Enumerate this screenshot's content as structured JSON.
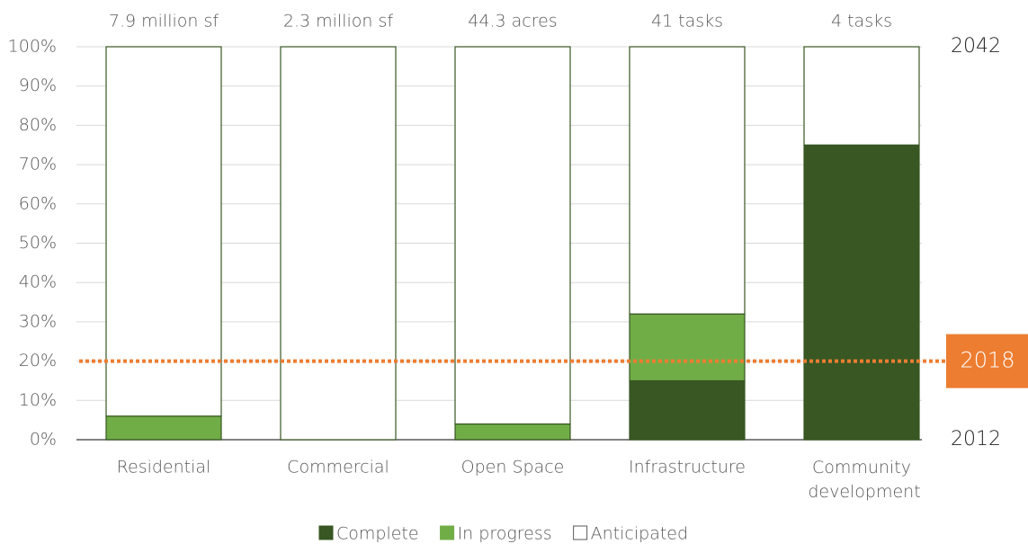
{
  "chart_data": {
    "type": "stacked_bar",
    "categories": [
      "Residential",
      "Commercial",
      "Open Space",
      "Infrastructure",
      "Community development"
    ],
    "top_labels": [
      "7.9 million sf",
      "2.3 million sf",
      "44.3 acres",
      "41 tasks",
      "4 tasks"
    ],
    "series": [
      {
        "name": "Complete",
        "color": "#385723",
        "values": [
          0,
          0,
          0,
          15,
          75
        ]
      },
      {
        "name": "In progress",
        "color": "#70ad47",
        "values": [
          6,
          0,
          4,
          17,
          0
        ]
      },
      {
        "name": "Anticipated",
        "color": "#ffffff",
        "values": [
          94,
          100,
          96,
          68,
          25
        ]
      }
    ],
    "ylim": [
      0,
      100
    ],
    "yticks": [
      {
        "value": 0,
        "label": "0%"
      },
      {
        "value": 10,
        "label": "10%"
      },
      {
        "value": 20,
        "label": "20%"
      },
      {
        "value": 30,
        "label": "30%"
      },
      {
        "value": 40,
        "label": "40%"
      },
      {
        "value": 50,
        "label": "50%"
      },
      {
        "value": 60,
        "label": "60%"
      },
      {
        "value": 70,
        "label": "70%"
      },
      {
        "value": 80,
        "label": "80%"
      },
      {
        "value": 90,
        "label": "90%"
      },
      {
        "value": 100,
        "label": "100%"
      }
    ],
    "grid": true,
    "bar_border_color": "#385723",
    "end_label": "2042",
    "start_label": "2012",
    "reference_line": {
      "value": 20,
      "label": "2018",
      "color": "#ed7d31"
    },
    "legend": "bottom"
  }
}
